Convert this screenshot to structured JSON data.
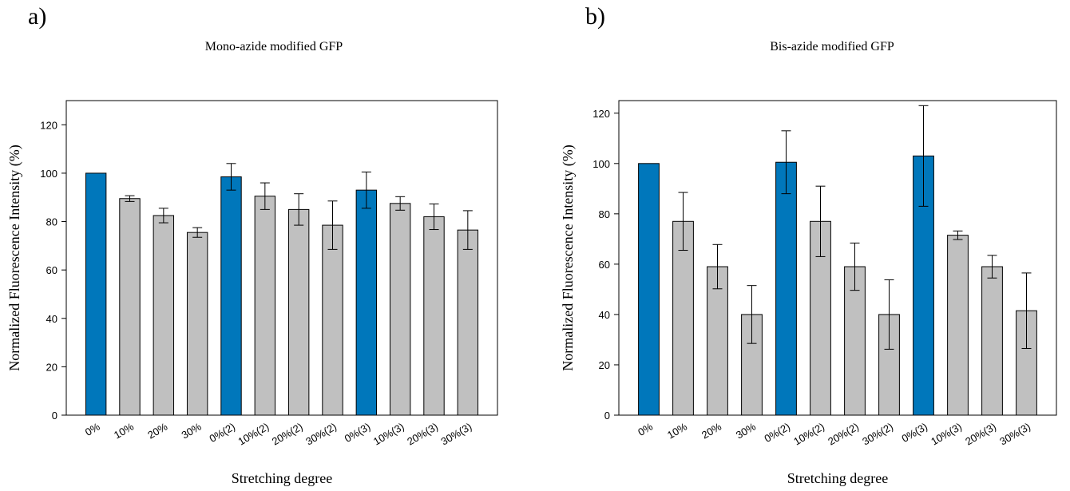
{
  "panels": [
    {
      "letter": "a)"
    },
    {
      "letter": "b)"
    }
  ],
  "colors": {
    "highlight": "#0077BB",
    "default": "#C0C0C0",
    "stroke": "#000000"
  },
  "chart_data": [
    {
      "type": "bar",
      "title": "Mono-azide modified GFP",
      "xlabel": "Stretching degree",
      "ylabel": "Normalized Fluorescence Intensity (%)",
      "ylim": [
        0,
        130
      ],
      "yticks": [
        0,
        20,
        40,
        60,
        80,
        100,
        120
      ],
      "grid": false,
      "categories": [
        "0%",
        "10%",
        "20%",
        "30%",
        "0%(2)",
        "10%(2)",
        "20%(2)",
        "30%(2)",
        "0%(3)",
        "10%(3)",
        "20%(3)",
        "30%(3)"
      ],
      "series": [
        {
          "values": [
            100,
            89.5,
            82.5,
            75.5,
            98.5,
            90.5,
            85,
            78.5,
            93,
            87.5,
            82,
            76.5
          ],
          "errors": [
            0,
            1.2,
            3,
            2,
            5.5,
            5.5,
            6.5,
            10,
            7.5,
            2.8,
            5.3,
            8
          ]
        }
      ],
      "highlighted_categories": [
        "0%",
        "0%(2)",
        "0%(3)"
      ]
    },
    {
      "type": "bar",
      "title": "Bis-azide modified GFP",
      "xlabel": "Stretching degree",
      "ylabel": "Normalized Fluorescence Intensity (%)",
      "ylim": [
        0,
        125
      ],
      "yticks": [
        0,
        20,
        40,
        60,
        80,
        100,
        120
      ],
      "grid": false,
      "categories": [
        "0%",
        "10%",
        "20%",
        "30%",
        "0%(2)",
        "10%(2)",
        "20%(2)",
        "30%(2)",
        "0%(3)",
        "10%(3)",
        "20%(3)",
        "30%(3)"
      ],
      "series": [
        {
          "values": [
            100,
            77,
            59,
            40,
            100.5,
            77,
            59,
            40,
            103,
            71.5,
            59,
            41.5
          ],
          "errors": [
            0,
            11.5,
            8.8,
            11.5,
            12.5,
            14,
            9.4,
            13.8,
            20,
            1.7,
            4.5,
            15
          ]
        }
      ],
      "highlighted_categories": [
        "0%",
        "0%(2)",
        "0%(3)"
      ]
    }
  ]
}
